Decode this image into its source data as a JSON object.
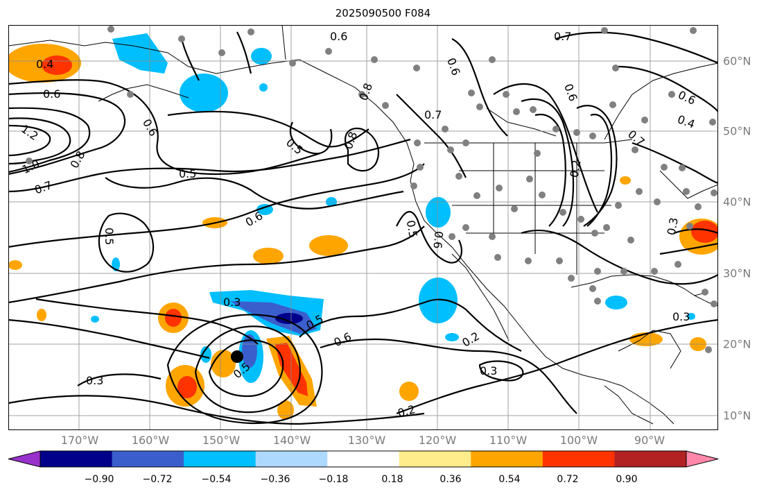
{
  "title": "2025090500 F084",
  "lon_labels": [
    "170°W",
    "160°W",
    "150°W",
    "140°W",
    "130°W",
    "120°W",
    "110°W",
    "100°W",
    "90°W"
  ],
  "lat_labels": [
    "60°N",
    "50°N",
    "40°N",
    "30°N",
    "20°N",
    "10°N"
  ],
  "contour_labels": [
    "0.4",
    "0.6",
    "1.2",
    "1.0",
    "0.8",
    "0.7",
    "0.6",
    "0.5",
    "0.6",
    "0.5",
    "0.8",
    "0.8",
    "0.7",
    "0.6",
    "0.6",
    "0.7",
    "0.5",
    "0.6",
    "0.5",
    "0.3",
    "0.5",
    "0.6",
    "0.3",
    "0.5",
    "0.2",
    "0.3",
    "0.2",
    "0.6",
    "0.6",
    "0.4",
    "0.3",
    "0.3",
    "0.7",
    "0.2"
  ],
  "colorbar": {
    "ticks": [
      "−0.90",
      "−0.72",
      "−0.54",
      "−0.36",
      "−0.18",
      "0.18",
      "0.36",
      "0.54",
      "0.72",
      "0.90"
    ],
    "colors": [
      "#9932cc",
      "#00008b",
      "#3a5fcd",
      "#00bfff",
      "#add8ff",
      "#ffffff",
      "#ffec8b",
      "#ffa500",
      "#ff3300",
      "#b22222",
      "#ff88aa"
    ]
  }
}
